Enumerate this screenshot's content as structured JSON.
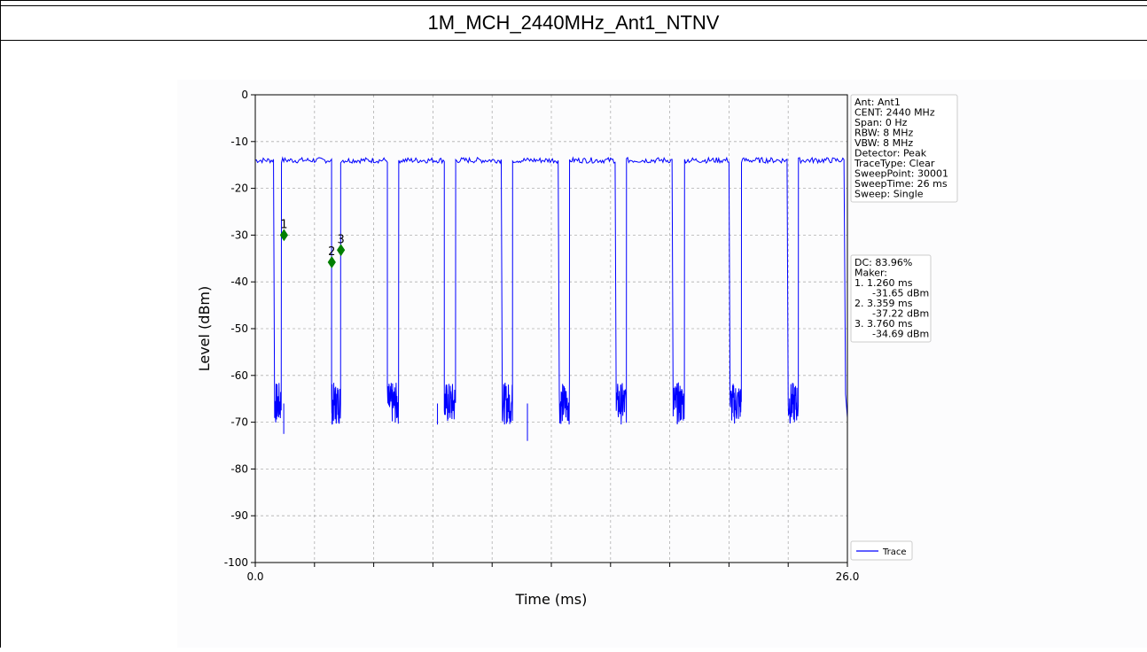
{
  "page": {
    "title": "1M_MCH_2440MHz_Ant1_NTNV"
  },
  "chart_data": {
    "type": "line",
    "title": "1M_MCH_2440MHz_Ant1_NTNV",
    "xlabel": "Time (ms)",
    "ylabel": "Level (dBm)",
    "xlim": [
      0.0,
      26.0
    ],
    "ylim": [
      -100,
      0
    ],
    "x_tick_labels": [
      "0.0",
      "26.0"
    ],
    "x_minor_ticks": [
      2.6,
      5.2,
      7.8,
      10.4,
      13.0,
      15.6,
      18.2,
      20.8,
      23.4
    ],
    "y_ticks": [
      0,
      -10,
      -20,
      -30,
      -40,
      -50,
      -60,
      -70,
      -80,
      -90,
      -100
    ],
    "grid": true,
    "legend_position": "lower-right outside",
    "series": [
      {
        "name": "Trace",
        "color": "#0000ff",
        "high_level_dbm": -14,
        "low_level_dbm": -66,
        "bursts_on_ms": [
          [
            0.0,
            0.85
          ],
          [
            1.15,
            3.35
          ],
          [
            3.75,
            5.8
          ],
          [
            6.3,
            8.3
          ],
          [
            8.8,
            10.85
          ],
          [
            11.3,
            13.35
          ],
          [
            13.8,
            15.85
          ],
          [
            16.3,
            18.35
          ],
          [
            18.85,
            20.85
          ],
          [
            21.35,
            23.4
          ],
          [
            23.85,
            25.9
          ]
        ],
        "low_spikes": [
          {
            "x": 1.25,
            "y": -72.5
          },
          {
            "x": 3.37,
            "y": -70.5
          },
          {
            "x": 11.95,
            "y": -74
          },
          {
            "x": 8.0,
            "y": -70.5
          }
        ]
      }
    ],
    "markers": [
      {
        "label": "1",
        "x": 1.26,
        "y": -30.0
      },
      {
        "label": "2",
        "x": 3.359,
        "y": -35.8
      },
      {
        "label": "3",
        "x": 3.76,
        "y": -33.2
      }
    ],
    "marker_color": "#007f00",
    "info_box": {
      "lines": [
        "Ant: Ant1",
        "CENT: 2440 MHz",
        "Span: 0 Hz",
        "RBW: 8 MHz",
        "VBW: 8 MHz",
        "Detector: Peak",
        "TraceType: Clear",
        "SweepPoint: 30001",
        "SweepTime: 26 ms",
        "Sweep: Single"
      ]
    },
    "result_box": {
      "lines": [
        "DC: 83.96%",
        "Maker:",
        "1. 1.260 ms",
        "    -31.65 dBm",
        "2. 3.359 ms",
        "    -37.22 dBm",
        "3. 3.760 ms",
        "    -34.69 dBm"
      ]
    },
    "legend": {
      "label": "Trace"
    }
  }
}
